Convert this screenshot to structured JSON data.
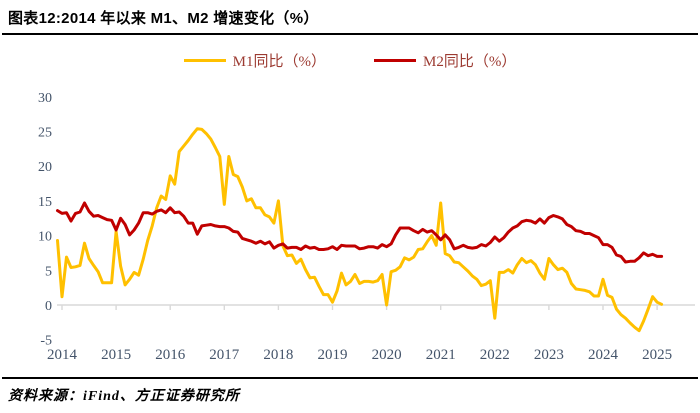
{
  "header": {
    "title": "图表12:2014 年以来 M1、M2 增速变化（%）"
  },
  "footer": {
    "source": "资料来源：iFind、方正证券研究所"
  },
  "colors": {
    "m1_line": "#FFC000",
    "m2_line": "#C00000",
    "legend_text": "#9C3A31",
    "axis_label": "#44546A",
    "axis_line": "#D9D9D9"
  },
  "chart_data": {
    "type": "line",
    "title": "2014 年以来 M1、M2 增速变化（%）",
    "x_frequency": "monthly",
    "x_start": "2013-12",
    "x_end": "2025-02",
    "x_tick_labels": [
      "2014",
      "2015",
      "2016",
      "2017",
      "2018",
      "2019",
      "2020",
      "2021",
      "2022",
      "2023",
      "2024",
      "2025"
    ],
    "y_ticks": [
      30,
      25,
      20,
      15,
      10,
      5,
      0,
      -5
    ],
    "ylim": [
      -5,
      30
    ],
    "grid": false,
    "legend_position": "top",
    "series": [
      {
        "name": "M1同比（%）",
        "color": "#FFC000",
        "values": [
          9.3,
          1.2,
          6.9,
          5.4,
          5.5,
          5.7,
          8.9,
          6.7,
          5.7,
          4.8,
          3.2,
          3.2,
          3.2,
          10.6,
          5.6,
          2.9,
          3.7,
          4.7,
          4.3,
          6.6,
          9.3,
          11.4,
          14.0,
          15.7,
          15.2,
          18.6,
          17.4,
          22.1,
          22.9,
          23.7,
          24.6,
          25.4,
          25.3,
          24.7,
          23.9,
          22.7,
          21.4,
          14.5,
          21.4,
          18.8,
          18.5,
          17.0,
          15.0,
          15.3,
          14.0,
          14.0,
          13.0,
          12.7,
          11.8,
          15.0,
          8.5,
          7.1,
          7.2,
          6.0,
          6.6,
          5.1,
          3.9,
          4.0,
          2.7,
          1.5,
          1.5,
          0.4,
          2.0,
          4.6,
          2.9,
          3.4,
          4.4,
          3.1,
          3.4,
          3.4,
          3.3,
          3.5,
          4.4,
          0.0,
          4.8,
          5.0,
          5.5,
          6.8,
          6.5,
          6.9,
          8.0,
          8.1,
          9.1,
          10.0,
          8.6,
          14.7,
          7.4,
          7.1,
          6.2,
          6.1,
          5.5,
          4.9,
          4.2,
          3.7,
          2.8,
          3.0,
          3.5,
          -1.9,
          4.7,
          4.7,
          5.1,
          4.6,
          5.8,
          6.7,
          6.1,
          6.4,
          5.8,
          4.6,
          3.7,
          6.7,
          5.8,
          5.1,
          5.3,
          4.7,
          3.1,
          2.3,
          2.2,
          2.1,
          1.9,
          1.3,
          1.3,
          3.7,
          1.4,
          1.1,
          -0.6,
          -1.4,
          -1.9,
          -2.6,
          -3.2,
          -3.7,
          -2.3,
          -0.6,
          1.2,
          0.4,
          0.1
        ]
      },
      {
        "name": "M2同比（%）",
        "color": "#C00000",
        "values": [
          13.6,
          13.2,
          13.3,
          12.1,
          13.2,
          13.4,
          14.7,
          13.5,
          12.8,
          12.9,
          12.6,
          12.3,
          12.2,
          10.8,
          12.5,
          11.6,
          10.1,
          10.8,
          11.8,
          13.3,
          13.3,
          13.1,
          13.5,
          13.7,
          13.3,
          14.0,
          13.3,
          13.4,
          12.8,
          11.8,
          11.8,
          10.2,
          11.4,
          11.5,
          11.6,
          11.4,
          11.3,
          11.3,
          11.1,
          10.6,
          10.5,
          9.6,
          9.4,
          9.2,
          8.9,
          9.2,
          8.8,
          9.1,
          8.2,
          8.6,
          8.8,
          8.2,
          8.3,
          8.3,
          8.0,
          8.5,
          8.2,
          8.3,
          8.0,
          8.0,
          8.1,
          8.4,
          8.0,
          8.6,
          8.5,
          8.5,
          8.5,
          8.1,
          8.2,
          8.4,
          8.4,
          8.2,
          8.7,
          8.4,
          8.8,
          10.1,
          11.1,
          11.1,
          11.1,
          10.7,
          10.4,
          10.9,
          10.5,
          10.7,
          10.1,
          9.4,
          10.1,
          9.4,
          8.1,
          8.3,
          8.6,
          8.3,
          8.2,
          8.3,
          8.7,
          8.5,
          9.0,
          9.8,
          9.2,
          9.7,
          10.5,
          11.1,
          11.4,
          12.0,
          12.2,
          12.1,
          11.8,
          12.4,
          11.8,
          12.6,
          12.9,
          12.7,
          12.4,
          11.6,
          11.3,
          10.7,
          10.6,
          10.3,
          10.3,
          10.0,
          9.7,
          8.7,
          8.7,
          8.3,
          7.2,
          7.0,
          6.2,
          6.3,
          6.3,
          6.8,
          7.5,
          7.1,
          7.3,
          7.0,
          7.0
        ]
      }
    ]
  }
}
